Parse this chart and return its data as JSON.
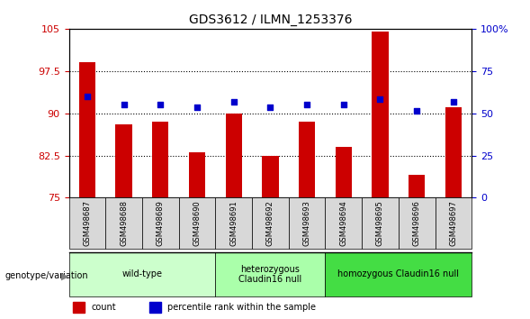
{
  "title": "GDS3612 / ILMN_1253376",
  "samples": [
    "GSM498687",
    "GSM498688",
    "GSM498689",
    "GSM498690",
    "GSM498691",
    "GSM498692",
    "GSM498693",
    "GSM498694",
    "GSM498695",
    "GSM498696",
    "GSM498697"
  ],
  "bar_values": [
    99.0,
    88.0,
    88.5,
    83.0,
    90.0,
    82.5,
    88.5,
    84.0,
    104.5,
    79.0,
    91.0
  ],
  "dot_values": [
    93.0,
    91.5,
    91.5,
    91.0,
    92.0,
    91.0,
    91.5,
    91.5,
    92.5,
    90.5,
    92.0
  ],
  "ylim_left": [
    75,
    105
  ],
  "ylim_right": [
    0,
    100
  ],
  "yticks_left": [
    75,
    82.5,
    90,
    97.5,
    105
  ],
  "yticks_right": [
    0,
    25,
    50,
    75,
    100
  ],
  "ytick_labels_left": [
    "75",
    "82.5",
    "90",
    "97.5",
    "105"
  ],
  "ytick_labels_right": [
    "0",
    "25",
    "50",
    "75",
    "100%"
  ],
  "bar_color": "#CC0000",
  "dot_color": "#0000CC",
  "groups": [
    {
      "label": "wild-type",
      "indices": [
        0,
        1,
        2,
        3
      ],
      "color": "#CCFFCC"
    },
    {
      "label": "heterozygous\nClaudin16 null",
      "indices": [
        4,
        5,
        6
      ],
      "color": "#AAFFAA"
    },
    {
      "label": "homozygous Claudin16 null",
      "indices": [
        7,
        8,
        9,
        10
      ],
      "color": "#44DD44"
    }
  ],
  "legend_count_label": "count",
  "legend_pct_label": "percentile rank within the sample",
  "genotype_label": "genotype/variation",
  "plot_bg_color": "#FFFFFF"
}
